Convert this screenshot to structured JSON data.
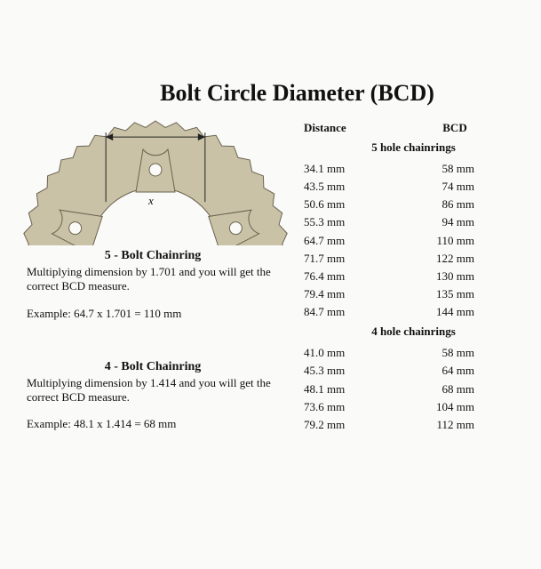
{
  "title": "Bolt Circle Diameter (BCD)",
  "xlabel": "x",
  "left": {
    "section5": {
      "title": "5 - Bolt Chainring",
      "body": "Multiplying dimension by 1.701 and you will get the correct BCD measure.",
      "example": "Example: 64.7 x 1.701 = 110 mm"
    },
    "section4": {
      "title": "4 - Bolt Chainring",
      "body": "Multiplying dimension by 1.414 and you will get the correct BCD measure.",
      "example": "Example: 48.1 x 1.414 = 68 mm"
    }
  },
  "table": {
    "headers": {
      "distance": "Distance",
      "bcd": "BCD"
    },
    "subhead5": "5 hole chainrings",
    "rows5": [
      {
        "d": "34.1 mm",
        "b": "58 mm"
      },
      {
        "d": "43.5 mm",
        "b": "74 mm"
      },
      {
        "d": "50.6 mm",
        "b": "86 mm"
      },
      {
        "d": "55.3 mm",
        "b": "94 mm"
      },
      {
        "d": "64.7 mm",
        "b": "110 mm"
      },
      {
        "d": "71.7 mm",
        "b": "122 mm"
      },
      {
        "d": "76.4 mm",
        "b": "130 mm"
      },
      {
        "d": "79.4 mm",
        "b": "135 mm"
      },
      {
        "d": "84.7 mm",
        "b": "144 mm"
      }
    ],
    "subhead4": "4 hole chainrings",
    "rows4": [
      {
        "d": "41.0 mm",
        "b": "58 mm"
      },
      {
        "d": "45.3 mm",
        "b": "64 mm"
      },
      {
        "d": "48.1 mm",
        "b": "68 mm"
      },
      {
        "d": "73.6 mm",
        "b": "104 mm"
      },
      {
        "d": "79.2 mm",
        "b": "112 mm"
      }
    ]
  },
  "chainring": {
    "fill": "#c9c2a6",
    "stroke": "#6b6350",
    "bg": "#fafaf8",
    "arrow": "#222222"
  }
}
